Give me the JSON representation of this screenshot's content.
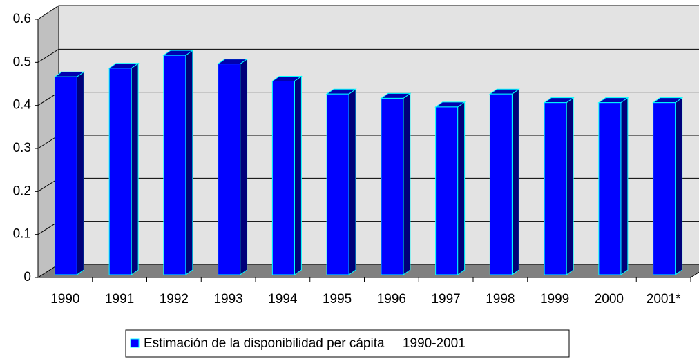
{
  "chart_data": {
    "type": "bar3d",
    "categories": [
      "1990",
      "1991",
      "1992",
      "1993",
      "1994",
      "1995",
      "1996",
      "1997",
      "1998",
      "1999",
      "2000",
      "2001*"
    ],
    "series": [
      {
        "name": "Estimación de la disponibilidad per cápita     1990-2001",
        "color": "#0000ff",
        "values": [
          0.46,
          0.48,
          0.51,
          0.49,
          0.45,
          0.42,
          0.41,
          0.39,
          0.42,
          0.4,
          0.4,
          0.4
        ]
      }
    ],
    "ylim": [
      0,
      0.6
    ],
    "yticks": [
      0,
      0.1,
      0.2,
      0.3,
      0.4,
      0.5,
      0.6
    ],
    "grid": true
  }
}
